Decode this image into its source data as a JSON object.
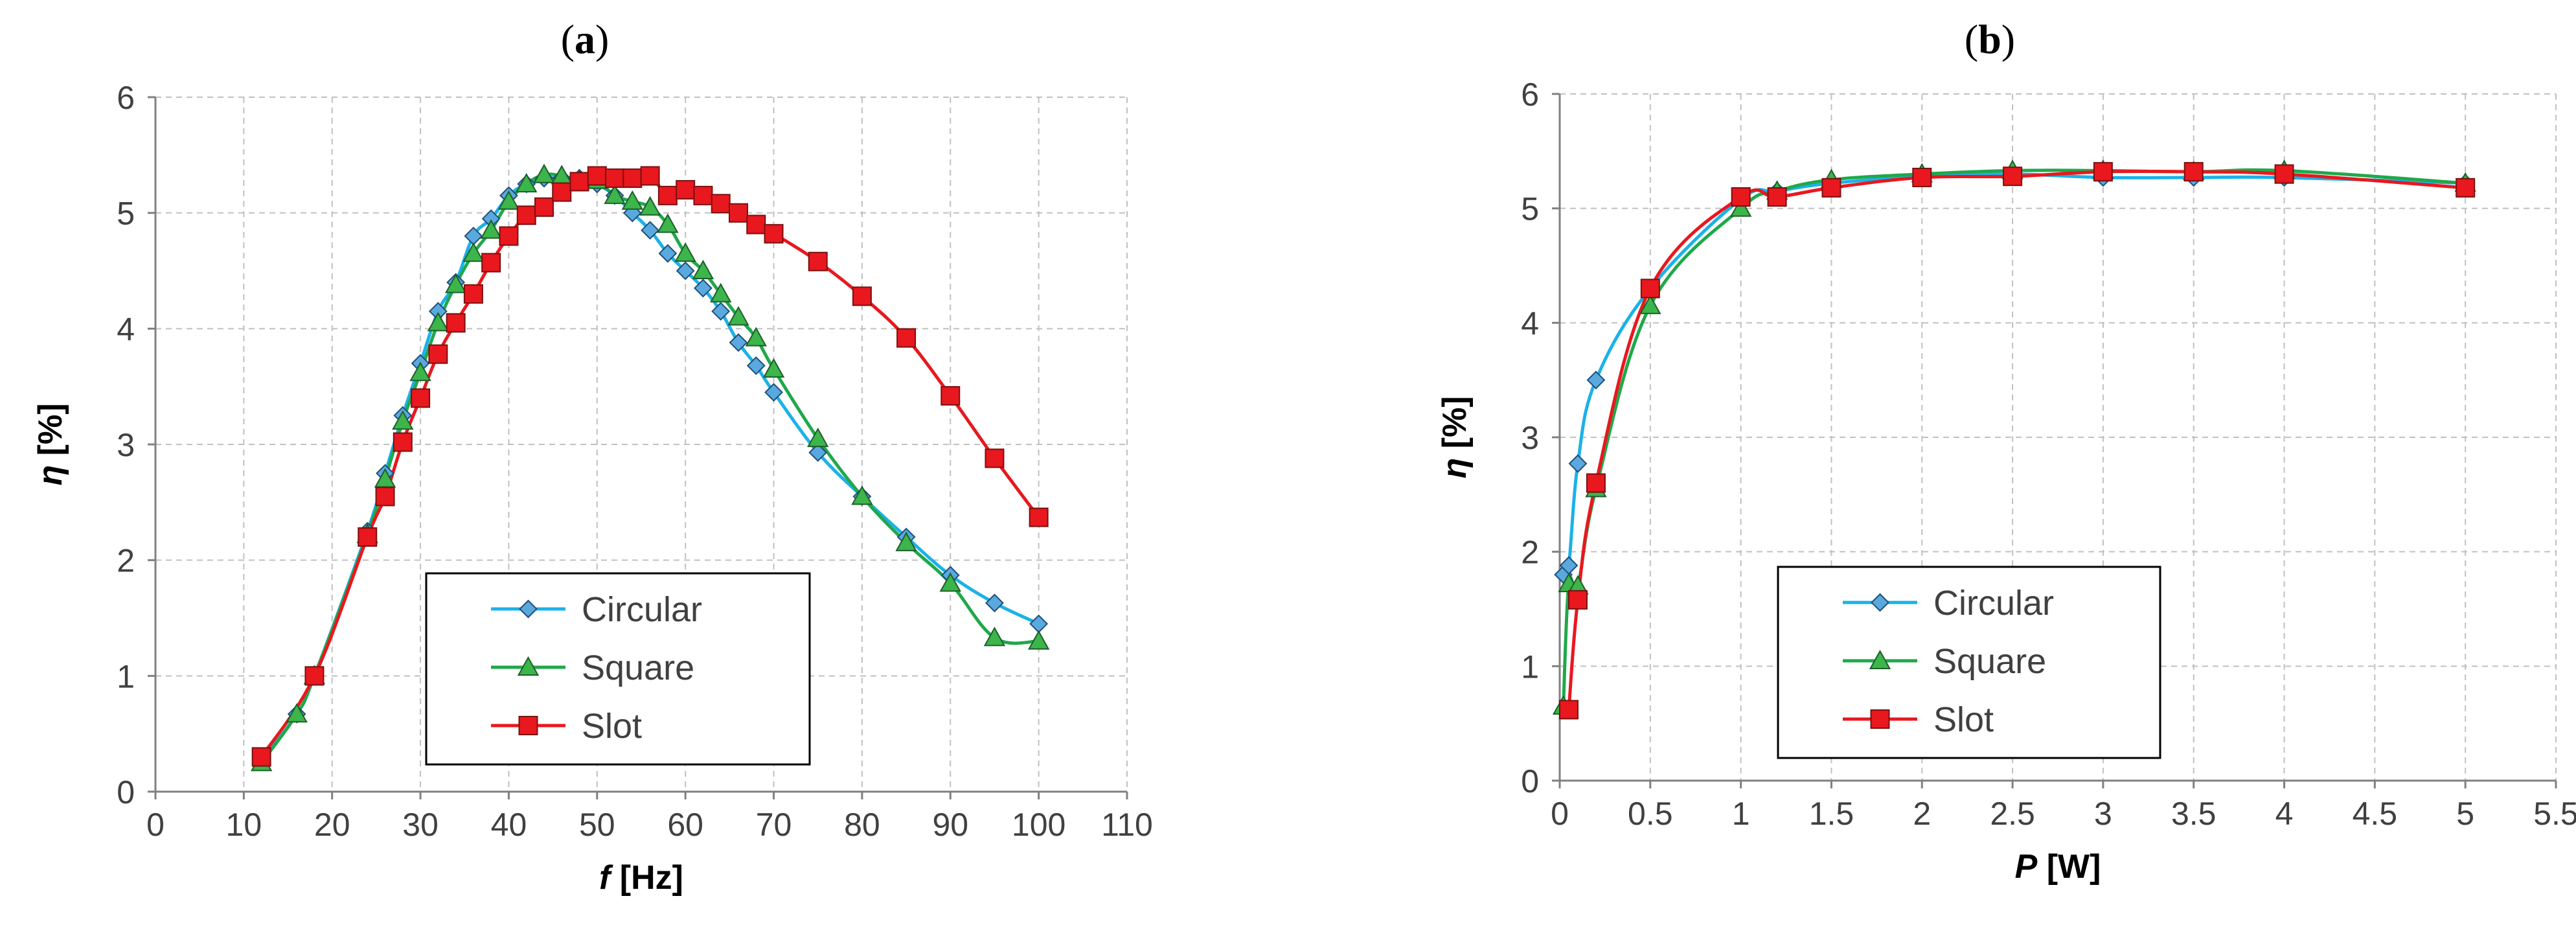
{
  "chart_data": [
    {
      "type": "line",
      "panel_label": "a",
      "title": "",
      "xlabel_var": "f",
      "xlabel_unit": " [Hz]",
      "ylabel_var": "η",
      "ylabel_unit": " [%]",
      "xlim": [
        0,
        110
      ],
      "ylim": [
        0,
        6
      ],
      "xticks": [
        0,
        10,
        20,
        30,
        40,
        50,
        60,
        70,
        80,
        90,
        100,
        110
      ],
      "yticks": [
        0,
        1,
        2,
        3,
        4,
        5,
        6
      ],
      "grid": true,
      "legend_position": "bottom-center",
      "series": [
        {
          "name": "Circular",
          "color": "#1ab2e8",
          "marker": "diamond",
          "x": [
            12,
            16,
            18,
            24,
            26,
            28,
            30,
            32,
            34,
            36,
            38,
            40,
            42,
            44,
            46,
            48,
            50,
            52,
            54,
            56,
            58,
            60,
            62,
            64,
            66,
            68,
            70,
            75,
            80,
            85,
            90,
            95,
            100
          ],
          "y": [
            0.27,
            0.67,
            1.0,
            2.25,
            2.75,
            3.25,
            3.7,
            4.15,
            4.4,
            4.8,
            4.95,
            5.15,
            5.25,
            5.3,
            5.3,
            5.3,
            5.25,
            5.15,
            5.0,
            4.85,
            4.65,
            4.5,
            4.35,
            4.15,
            3.88,
            3.68,
            3.45,
            2.93,
            2.55,
            2.2,
            1.87,
            1.63,
            1.45
          ]
        },
        {
          "name": "Square",
          "color": "#20a84a",
          "marker": "triangle",
          "x": [
            12,
            16,
            18,
            24,
            26,
            28,
            30,
            32,
            34,
            36,
            38,
            40,
            42,
            44,
            46,
            48,
            50,
            52,
            54,
            56,
            58,
            60,
            62,
            64,
            66,
            68,
            70,
            75,
            80,
            85,
            90,
            95,
            100
          ],
          "y": [
            0.25,
            0.67,
            1.0,
            2.22,
            2.7,
            3.2,
            3.62,
            4.05,
            4.38,
            4.65,
            4.85,
            5.1,
            5.25,
            5.33,
            5.32,
            5.28,
            5.28,
            5.15,
            5.1,
            5.05,
            4.9,
            4.65,
            4.5,
            4.3,
            4.1,
            3.92,
            3.65,
            3.05,
            2.55,
            2.15,
            1.8,
            1.33,
            1.3
          ]
        },
        {
          "name": "Slot",
          "color": "#e8181e",
          "marker": "square",
          "x": [
            12,
            18,
            24,
            26,
            28,
            30,
            32,
            34,
            36,
            38,
            40,
            42,
            44,
            46,
            48,
            50,
            52,
            54,
            56,
            58,
            60,
            62,
            64,
            66,
            68,
            70,
            75,
            80,
            85,
            90,
            95,
            100
          ],
          "y": [
            0.3,
            1.0,
            2.2,
            2.55,
            3.02,
            3.4,
            3.78,
            4.05,
            4.3,
            4.57,
            4.8,
            4.98,
            5.05,
            5.18,
            5.27,
            5.32,
            5.3,
            5.3,
            5.32,
            5.15,
            5.2,
            5.15,
            5.08,
            5.0,
            4.9,
            4.82,
            4.58,
            4.28,
            3.92,
            3.42,
            2.88,
            2.37
          ]
        }
      ]
    },
    {
      "type": "line",
      "panel_label": "b",
      "title": "",
      "xlabel_var": "P",
      "xlabel_unit": " [W]",
      "ylabel_var": "η",
      "ylabel_unit": " [%]",
      "xlim": [
        0,
        5.5
      ],
      "ylim": [
        0,
        6
      ],
      "xticks": [
        0,
        0.5,
        1,
        1.5,
        2,
        2.5,
        3,
        3.5,
        4,
        4.5,
        5,
        5.5
      ],
      "yticks": [
        0,
        1,
        2,
        3,
        4,
        5,
        6
      ],
      "grid": true,
      "legend_position": "bottom-center",
      "series": [
        {
          "name": "Circular",
          "color": "#1ab2e8",
          "marker": "diamond",
          "x": [
            0.02,
            0.05,
            0.1,
            0.2,
            0.5,
            1.0,
            1.2,
            1.5,
            2.0,
            2.5,
            3.0,
            3.5,
            4.0,
            5.0
          ],
          "y": [
            1.8,
            1.88,
            2.77,
            3.5,
            4.3,
            5.08,
            5.15,
            5.22,
            5.28,
            5.3,
            5.27,
            5.27,
            5.27,
            5.22
          ]
        },
        {
          "name": "Square",
          "color": "#20a84a",
          "marker": "triangle",
          "x": [
            0.02,
            0.05,
            0.1,
            0.2,
            0.5,
            1.0,
            1.2,
            1.5,
            2.0,
            2.5,
            3.0,
            3.5,
            4.0,
            5.0
          ],
          "y": [
            0.65,
            1.72,
            1.7,
            2.55,
            4.15,
            5.0,
            5.15,
            5.25,
            5.3,
            5.33,
            5.33,
            5.32,
            5.33,
            5.22
          ]
        },
        {
          "name": "Slot",
          "color": "#e8181e",
          "marker": "square",
          "x": [
            0.05,
            0.1,
            0.2,
            0.5,
            1.0,
            1.2,
            1.5,
            2.0,
            2.5,
            3.0,
            3.5,
            4.0,
            5.0
          ],
          "y": [
            0.62,
            1.58,
            2.6,
            4.3,
            5.1,
            5.1,
            5.18,
            5.27,
            5.28,
            5.32,
            5.32,
            5.3,
            5.18
          ]
        }
      ]
    }
  ]
}
